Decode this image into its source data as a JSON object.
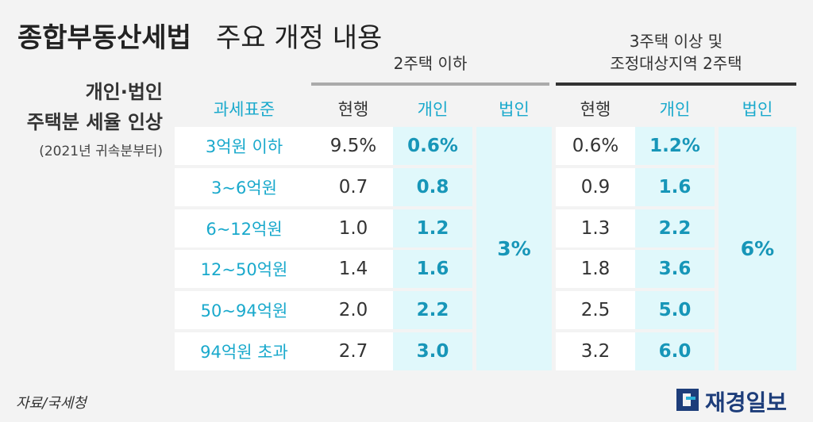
{
  "title": {
    "bold": "종합부동산세법",
    "rest": "주요 개정 내용"
  },
  "side_note": {
    "lines": [
      "개인·법인",
      "주택분 세율 인상"
    ],
    "sub": "(2021년 귀속분부터)"
  },
  "groups": [
    {
      "lines": [
        "2주택 이하"
      ]
    },
    {
      "lines": [
        "3주택 이상 및",
        "조정대상지역 2주택"
      ]
    }
  ],
  "columns": [
    "과세표준",
    "현행",
    "개인",
    "법인",
    "현행",
    "개인",
    "법인"
  ],
  "rows": [
    [
      "3억원 이하",
      "9.5%",
      "0.6%",
      "0.6%",
      "1.2%"
    ],
    [
      "3~6억원",
      "0.7",
      "0.8",
      "0.9",
      "1.6"
    ],
    [
      "6~12억원",
      "1.0",
      "1.2",
      "1.3",
      "2.2"
    ],
    [
      "12~50억원",
      "1.4",
      "1.6",
      "1.8",
      "3.6"
    ],
    [
      "50~94억원",
      "2.0",
      "2.2",
      "2.5",
      "5.0"
    ],
    [
      "94억원 초과",
      "2.7",
      "3.0",
      "3.2",
      "6.0"
    ]
  ],
  "corporate_rates": [
    "3%",
    "6%"
  ],
  "source": "자료/국세청",
  "logo": "재경일보"
}
